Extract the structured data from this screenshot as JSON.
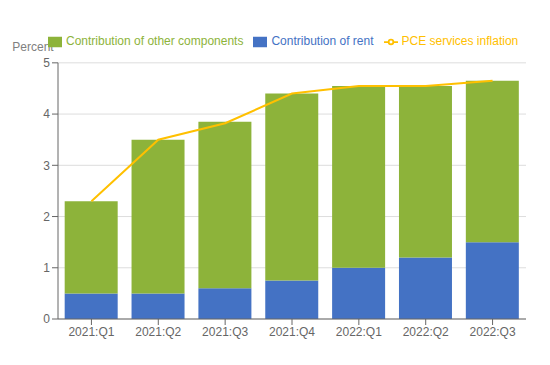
{
  "chart_data": {
    "type": "bar",
    "ylabel": "Percent",
    "categories": [
      "2021:Q1",
      "2021:Q2",
      "2021:Q3",
      "2021:Q4",
      "2022:Q1",
      "2022:Q2",
      "2022:Q3"
    ],
    "series": [
      {
        "name": "Contribution of rent",
        "type": "bar",
        "color": "#4472C4",
        "values": [
          0.5,
          0.5,
          0.6,
          0.75,
          1.0,
          1.2,
          1.5
        ]
      },
      {
        "name": "Contribution of other components",
        "type": "bar",
        "color": "#8DB33A",
        "values": [
          1.8,
          3.0,
          3.25,
          3.65,
          3.55,
          3.35,
          3.15
        ]
      },
      {
        "name": "PCE services inflation",
        "type": "line",
        "color": "#FFC000",
        "values": [
          2.3,
          3.5,
          3.82,
          4.4,
          4.55,
          4.55,
          4.65
        ]
      }
    ],
    "stacked": true,
    "ylim": [
      0,
      5
    ],
    "yticks": [
      0,
      1,
      2,
      3,
      4,
      5
    ],
    "grid": true,
    "legend": "upper left"
  }
}
